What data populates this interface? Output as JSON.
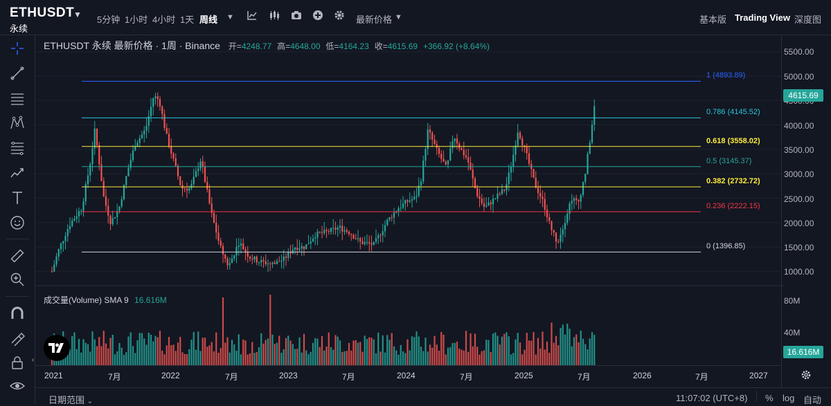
{
  "header": {
    "symbol": "ETHUSDT",
    "symbol_sub": "永续",
    "intervals": [
      "5分钟",
      "1小时",
      "4小时",
      "1天",
      "周线"
    ],
    "active_interval": "周线",
    "price_type": "最新价格",
    "views": [
      "基本版",
      "Trading View",
      "深度图"
    ],
    "active_view": "Trading View"
  },
  "legend": {
    "title": "ETHUSDT 永续 最新价格 · 1周 · Binance",
    "open_label": "开=",
    "open": "4248.77",
    "high_label": "高=",
    "high": "4648.00",
    "low_label": "低=",
    "low": "4164.23",
    "close_label": "收=",
    "close": "4615.69",
    "change": "+366.92 (+8.64%)"
  },
  "volume_legend": {
    "label": "成交量(Volume) SMA 9",
    "value": "16.616M"
  },
  "price_axis": {
    "labels": [
      "5500.00",
      "5000.00",
      "4500.00",
      "4000.00",
      "3500.00",
      "3000.00",
      "2500.00",
      "2000.00",
      "1500.00",
      "1000.00"
    ],
    "current_price": "4615.69"
  },
  "volume_axis": {
    "labels": [
      "80M",
      "40M"
    ],
    "current_volume": "16.616M"
  },
  "time_axis": [
    "2021",
    "7月",
    "2022",
    "7月",
    "2023",
    "7月",
    "2024",
    "7月",
    "2025",
    "7月",
    "2026",
    "7月",
    "2027"
  ],
  "fib_levels": [
    {
      "label": "1 (4893.89)",
      "price": 4893.89,
      "color": "#2962ff"
    },
    {
      "label": "0.786 (4145.52)",
      "price": 4145.52,
      "color": "#26c6da"
    },
    {
      "label": "0.618 (3558.02)",
      "price": 3558.02,
      "color": "#ffeb3b"
    },
    {
      "label": "0.5 (3145.37)",
      "price": 3145.37,
      "color": "#26a69a"
    },
    {
      "label": "0.382 (2732.72)",
      "price": 2732.72,
      "color": "#ffeb3b"
    },
    {
      "label": "0.236 (2222.15)",
      "price": 2222.15,
      "color": "#f23645"
    },
    {
      "label": "0 (1396.85)",
      "price": 1396.85,
      "color": "#d1d4dc"
    }
  ],
  "colors": {
    "up": "#26a69a",
    "down": "#ef5350",
    "background": "#131722"
  },
  "bottom": {
    "date_range": "日期范围",
    "clock": "11:07:02 (UTC+8)",
    "percent": "%",
    "log": "log",
    "auto": "自动"
  },
  "left_tools": [
    "crosshair-icon",
    "trendline-icon",
    "horizontal-lines-icon",
    "pattern-icon",
    "fib-icon",
    "brush-icon",
    "text-icon",
    "emoji-icon",
    "ruler-icon",
    "zoom-icon",
    "magnet-icon",
    "lock-drawing-icon",
    "lock-icon",
    "eye-icon"
  ],
  "top_icons": [
    "indicator-icon",
    "chart-type-icon",
    "camera-icon",
    "add-icon",
    "settings-icon"
  ]
}
